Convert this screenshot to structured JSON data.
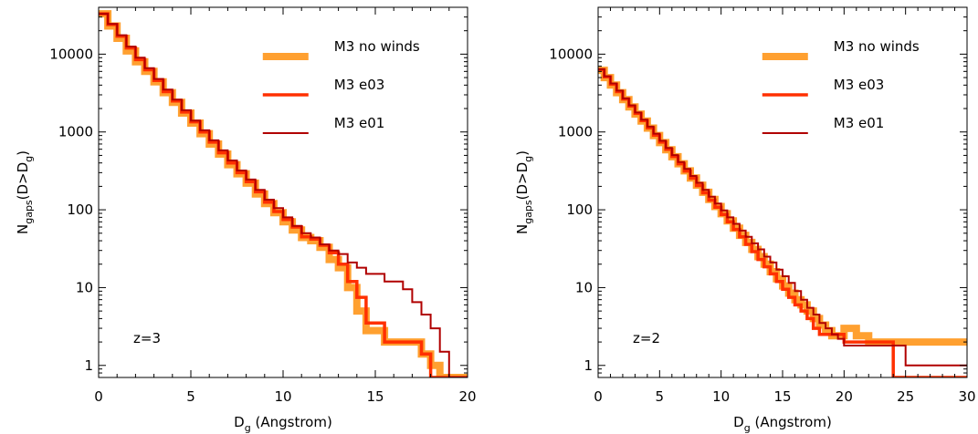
{
  "chart_data": [
    {
      "type": "line",
      "step": true,
      "log_y": true,
      "xlim": [
        0,
        20
      ],
      "ylim": [
        0.7,
        40000
      ],
      "x_ticks": [
        0,
        5,
        10,
        15,
        20
      ],
      "y_ticks": [
        1,
        10,
        100,
        1000,
        10000
      ],
      "y_tick_labels": [
        "1",
        "10",
        "100",
        "1000",
        "10000"
      ],
      "xlabel_main": "D",
      "xlabel_sub": "g",
      "xlabel_rest": " (Angstrom)",
      "ylabel_parts": [
        "N",
        "gaps",
        "(D>D",
        "g",
        ")"
      ],
      "annotation": "z=3",
      "legend_position": "top-right",
      "series": [
        {
          "name": "M3 no winds",
          "color": "#ffa030",
          "width": 8,
          "x": [
            0.5,
            1.0,
            1.5,
            2.0,
            2.5,
            3.0,
            3.5,
            4.0,
            4.5,
            5.0,
            5.5,
            6.0,
            6.5,
            7.0,
            7.5,
            8.0,
            8.5,
            9.0,
            9.5,
            10.0,
            10.5,
            11.0,
            11.5,
            12.0,
            12.5,
            13.0,
            13.5,
            14.0,
            14.5,
            15.0,
            15.5,
            16.0,
            16.5,
            17.0,
            17.5,
            18.0,
            18.5,
            19.0,
            19.5,
            20.0
          ],
          "y": [
            33000,
            23000,
            16000,
            11000,
            8000,
            6000,
            4400,
            3200,
            2400,
            1750,
            1300,
            950,
            700,
            520,
            380,
            290,
            220,
            160,
            120,
            92,
            70,
            55,
            44,
            40,
            33,
            23,
            18,
            10,
            5,
            2.8,
            2.8,
            2,
            2,
            2,
            2,
            1.4,
            1.0,
            0.7,
            0.7,
            0.7
          ]
        },
        {
          "name": "M3 e03",
          "color": "#ff3000",
          "width": 3.5,
          "x": [
            0.5,
            1.0,
            1.5,
            2.0,
            2.5,
            3.0,
            3.5,
            4.0,
            4.5,
            5.0,
            5.5,
            6.0,
            6.5,
            7.0,
            7.5,
            8.0,
            8.5,
            9.0,
            9.5,
            10.0,
            10.5,
            11.0,
            11.5,
            12.0,
            12.5,
            13.0,
            13.5,
            14.0,
            14.5,
            15.0,
            15.5,
            16.0,
            16.5,
            17.0,
            17.5,
            18.0,
            18.5,
            19.0,
            19.5,
            20.0
          ],
          "y": [
            33000,
            24000,
            17000,
            12000,
            8500,
            6300,
            4600,
            3300,
            2500,
            1800,
            1350,
            1000,
            740,
            540,
            400,
            300,
            230,
            170,
            125,
            95,
            75,
            60,
            45,
            42,
            35,
            28,
            20,
            12,
            7.5,
            3.5,
            3.5,
            2,
            2,
            2,
            2,
            1.4,
            0.7,
            0.7,
            0.7,
            0.7
          ]
        },
        {
          "name": "M3 e01",
          "color": "#b00000",
          "width": 2,
          "x": [
            0.5,
            1.0,
            1.5,
            2.0,
            2.5,
            3.0,
            3.5,
            4.0,
            4.5,
            5.0,
            5.5,
            6.0,
            6.5,
            7.0,
            7.5,
            8.0,
            8.5,
            9.0,
            9.5,
            10.0,
            10.5,
            11.0,
            11.5,
            12.0,
            12.5,
            13.0,
            13.5,
            14.0,
            14.5,
            15.0,
            15.5,
            16.0,
            16.5,
            17.0,
            17.5,
            18.0,
            18.5,
            19.0,
            19.5,
            20.0
          ],
          "y": [
            33000,
            24500,
            17500,
            12500,
            9000,
            6600,
            4800,
            3500,
            2600,
            1900,
            1400,
            1050,
            780,
            580,
            430,
            320,
            245,
            180,
            135,
            105,
            80,
            62,
            50,
            44,
            36,
            30,
            27,
            21,
            18,
            15,
            15,
            12,
            12,
            9.5,
            6.5,
            4.5,
            3.0,
            1.5,
            0.7,
            0.7
          ]
        }
      ]
    },
    {
      "type": "line",
      "step": true,
      "log_y": true,
      "xlim": [
        0,
        30
      ],
      "ylim": [
        0.7,
        40000
      ],
      "x_ticks": [
        0,
        5,
        10,
        15,
        20,
        25,
        30
      ],
      "y_ticks": [
        1,
        10,
        100,
        1000,
        10000
      ],
      "y_tick_labels": [
        "1",
        "10",
        "100",
        "1000",
        "10000"
      ],
      "xlabel_main": "D",
      "xlabel_sub": "g",
      "xlabel_rest": " (Angstrom)",
      "ylabel_parts": [
        "N",
        "gaps",
        "(D>D",
        "g",
        ")"
      ],
      "annotation": "z=2",
      "legend_position": "top-right",
      "series": [
        {
          "name": "M3 no winds",
          "color": "#ffa030",
          "width": 8,
          "x": [
            0.5,
            1.0,
            1.5,
            2.0,
            2.5,
            3.0,
            3.5,
            4.0,
            4.5,
            5.0,
            5.5,
            6.0,
            6.5,
            7.0,
            7.5,
            8.0,
            8.5,
            9.0,
            9.5,
            10.0,
            10.5,
            11.0,
            11.5,
            12.0,
            12.5,
            13.0,
            13.5,
            14.0,
            14.5,
            15.0,
            15.5,
            16.0,
            16.5,
            17.0,
            17.5,
            18.0,
            18.5,
            19.0,
            19.5,
            20.0,
            21.0,
            22.0,
            23.0,
            24.0,
            25.0,
            27.0,
            30.0
          ],
          "y": [
            6200,
            5000,
            4000,
            3200,
            2600,
            2100,
            1700,
            1380,
            1120,
            900,
            730,
            590,
            480,
            390,
            316,
            256,
            207,
            168,
            136,
            110,
            89,
            72,
            58,
            47,
            38,
            31,
            25,
            20,
            16,
            13,
            10.5,
            8.5,
            7,
            6,
            5,
            4,
            3.3,
            2.8,
            2.4,
            2.4,
            3,
            2.4,
            2,
            2,
            2,
            2,
            2
          ]
        },
        {
          "name": "M3 e03",
          "color": "#ff3000",
          "width": 3.5,
          "x": [
            0.5,
            1.0,
            1.5,
            2.0,
            2.5,
            3.0,
            3.5,
            4.0,
            4.5,
            5.0,
            5.5,
            6.0,
            6.5,
            7.0,
            7.5,
            8.0,
            8.5,
            9.0,
            9.5,
            10.0,
            10.5,
            11.0,
            11.5,
            12.0,
            12.5,
            13.0,
            13.5,
            14.0,
            14.5,
            15.0,
            15.5,
            16.0,
            16.5,
            17.0,
            17.5,
            18.0,
            18.5,
            19.0,
            19.5,
            20.0,
            21.0,
            22.0,
            23.0,
            24.0,
            25.0,
            27.0,
            30.0
          ],
          "y": [
            6300,
            5100,
            4100,
            3300,
            2650,
            2150,
            1730,
            1400,
            1130,
            910,
            740,
            600,
            485,
            390,
            315,
            255,
            205,
            165,
            133,
            108,
            87,
            70,
            56,
            45,
            36,
            29,
            23,
            18.5,
            15,
            12,
            9.5,
            7.5,
            6,
            5,
            4,
            3,
            2.5,
            2.5,
            2.5,
            2.5,
            2,
            2,
            2,
            2,
            0.7,
            0.7,
            0.7
          ]
        },
        {
          "name": "M3 e01",
          "color": "#b00000",
          "width": 2,
          "x": [
            0.5,
            1.0,
            1.5,
            2.0,
            2.5,
            3.0,
            3.5,
            4.0,
            4.5,
            5.0,
            5.5,
            6.0,
            6.5,
            7.0,
            7.5,
            8.0,
            8.5,
            9.0,
            9.5,
            10.0,
            10.5,
            11.0,
            11.5,
            12.0,
            12.5,
            13.0,
            13.5,
            14.0,
            14.5,
            15.0,
            15.5,
            16.0,
            16.5,
            17.0,
            17.5,
            18.0,
            18.5,
            19.0,
            19.5,
            20.0,
            21.0,
            22.0,
            23.0,
            24.0,
            25.0,
            27.0,
            30.0
          ],
          "y": [
            6400,
            5200,
            4200,
            3400,
            2700,
            2200,
            1780,
            1440,
            1170,
            950,
            770,
            625,
            505,
            410,
            335,
            272,
            222,
            180,
            147,
            120,
            98,
            80,
            66,
            54,
            45,
            37,
            31,
            25,
            21,
            17,
            14,
            11.5,
            9,
            7,
            5.5,
            4.5,
            3.5,
            3,
            2.5,
            2.2,
            1.8,
            1.8,
            1.8,
            1.8,
            1.8,
            1,
            1
          ]
        }
      ]
    }
  ]
}
